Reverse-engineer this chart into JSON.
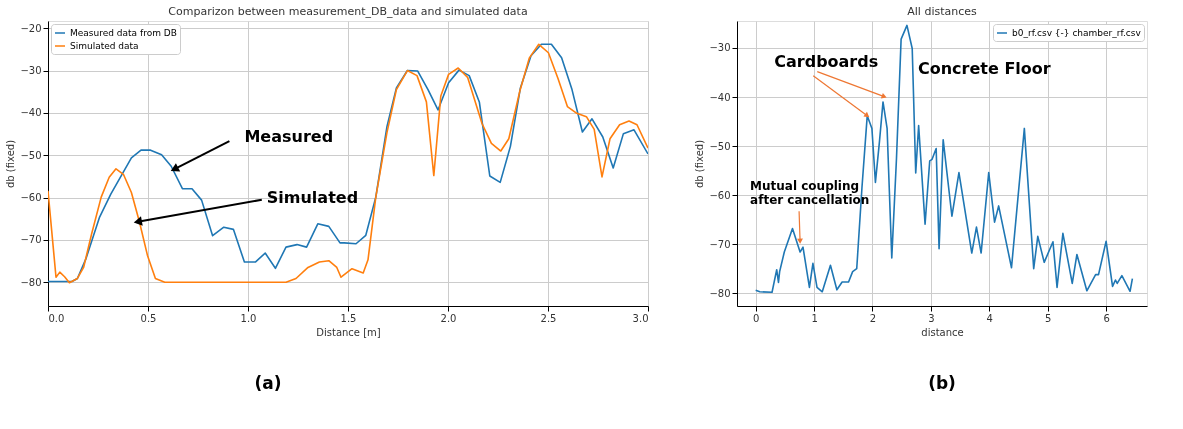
{
  "chart_data": [
    {
      "type": "line",
      "title": "Comparizon between measurement_DB_data and simulated data",
      "xlabel": "Distance [m]",
      "ylabel": "db (fixed)",
      "xlim": [
        0,
        3
      ],
      "ylim": [
        -85.6,
        -18.3
      ],
      "xticks": [
        {
          "value": 0,
          "label": "0.0"
        },
        0.5,
        {
          "value": 1,
          "label": "1.0"
        },
        1.5,
        {
          "value": 2,
          "label": "2.0"
        },
        2.5,
        {
          "value": 3,
          "label": "3.0"
        }
      ],
      "yticks": [
        -80,
        -70,
        -60,
        -50,
        -40,
        -30,
        -20
      ],
      "grid": true,
      "legend": "top left",
      "series": [
        {
          "name": "Measured data from DB",
          "color": "#1f77b4",
          "x": [
            0,
            0.12,
            0.147,
            0.19,
            0.258,
            0.314,
            0.417,
            0.465,
            0.513,
            0.568,
            0.616,
            0.672,
            0.72,
            0.768,
            0.823,
            0.879,
            0.927,
            0.982,
            1.038,
            1.086,
            1.137,
            1.19,
            1.245,
            1.293,
            1.349,
            1.404,
            1.46,
            1.481,
            1.54,
            1.589,
            1.639,
            1.695,
            1.742,
            1.797,
            1.848,
            1.9,
            1.95,
            2.003,
            2.055,
            2.106,
            2.157,
            2.209,
            2.261,
            2.312,
            2.362,
            2.415,
            2.467,
            2.517,
            2.568,
            2.62,
            2.672,
            2.72,
            2.774,
            2.826,
            2.877,
            2.93,
            3.0
          ],
          "values": [
            -79.8,
            -79.8,
            -79.1,
            -74.4,
            -64.6,
            -59.2,
            -50.6,
            -48.8,
            -48.8,
            -49.9,
            -52.6,
            -57.9,
            -57.9,
            -60.6,
            -69,
            -67,
            -67.5,
            -75.2,
            -75.2,
            -73.1,
            -76.7,
            -71.7,
            -71.1,
            -71.7,
            -66.2,
            -66.8,
            -70.7,
            -70.7,
            -70.9,
            -68.9,
            -59.9,
            -43.2,
            -34.1,
            -30,
            -30.1,
            -34.5,
            -39.3,
            -32.9,
            -29.9,
            -31.2,
            -37.5,
            -54.9,
            -56.4,
            -47.9,
            -34.1,
            -26.5,
            -23.8,
            -23.8,
            -27,
            -34.5,
            -44.5,
            -41.4,
            -45.7,
            -53,
            -44.9,
            -44,
            -49.7
          ]
        },
        {
          "name": "Simulated data",
          "color": "#ff7f0e",
          "x": [
            0,
            0.04,
            0.059,
            0.083,
            0.107,
            0.147,
            0.178,
            0.218,
            0.266,
            0.306,
            0.34,
            0.377,
            0.417,
            0.457,
            0.497,
            0.537,
            0.584,
            1.19,
            1.24,
            1.3,
            1.357,
            1.404,
            1.444,
            1.465,
            1.52,
            1.576,
            1.6,
            1.639,
            1.695,
            1.742,
            1.797,
            1.845,
            1.892,
            1.929,
            1.964,
            2.003,
            2.051,
            2.098,
            2.17,
            2.217,
            2.264,
            2.304,
            2.359,
            2.407,
            2.454,
            2.502,
            2.55,
            2.597,
            2.644,
            2.692,
            2.731,
            2.77,
            2.81,
            2.858,
            2.905,
            2.945,
            3.0
          ],
          "values": [
            -58.4,
            -78.8,
            -77.6,
            -78.7,
            -80.1,
            -79.1,
            -76.5,
            -68.6,
            -59.9,
            -55.2,
            -53.2,
            -54.5,
            -58.8,
            -65.7,
            -73.6,
            -79.1,
            -80,
            -80,
            -79.1,
            -76.5,
            -75.2,
            -74.9,
            -76.5,
            -78.8,
            -76.8,
            -77.8,
            -74.7,
            -59.9,
            -44.6,
            -34.5,
            -30,
            -31.2,
            -37.4,
            -54.8,
            -36,
            -30.9,
            -29.4,
            -31.6,
            -42.5,
            -47.2,
            -49,
            -46.1,
            -34.9,
            -27,
            -23.8,
            -25.8,
            -31.9,
            -38.5,
            -40.1,
            -40.9,
            -43.9,
            -55.1,
            -46.1,
            -42.8,
            -41.9,
            -42.8,
            -48.3
          ]
        }
      ],
      "annotations": [
        {
          "text": "Measured",
          "x": 0.632,
          "y": -53.3
        },
        {
          "text": "Simulated",
          "x": 0.449,
          "y": -65.7
        },
        "(a)"
      ]
    },
    {
      "type": "line",
      "title": "All distances",
      "xlabel": "distance",
      "ylabel": "db (fixed)",
      "xlim": [
        -0.32,
        6.7
      ],
      "ylim": [
        -82.6,
        -24.5
      ],
      "xticks": [
        0,
        1,
        2,
        3,
        4,
        5,
        6
      ],
      "yticks": [
        -80,
        -70,
        -60,
        -50,
        -40,
        -30
      ],
      "grid": true,
      "legend": "top right",
      "series": [
        {
          "name": "b0_rf.csv {-} chamber_rf.csv",
          "color": "#1f77b4",
          "x": [
            0,
            0.07,
            0.28,
            0.36,
            0.39,
            0.41,
            0.49,
            0.63,
            0.76,
            0.81,
            0.92,
            0.98,
            1.05,
            1.14,
            1.28,
            1.39,
            1.48,
            1.59,
            1.66,
            1.73,
            1.82,
            1.91,
            1.99,
            2.05,
            2.12,
            2.18,
            2.25,
            2.33,
            2.41,
            2.49,
            2.59,
            2.68,
            2.74,
            2.79,
            2.9,
            2.98,
            3.02,
            3.09,
            3.14,
            3.21,
            3.36,
            3.48,
            3.7,
            3.78,
            3.86,
            3.99,
            4.09,
            4.16,
            4.38,
            4.6,
            4.76,
            4.83,
            4.94,
            5.09,
            5.16,
            5.26,
            5.42,
            5.5,
            5.67,
            5.82,
            5.87,
            6.0,
            6.11,
            6.16,
            6.19,
            6.27,
            6.41,
            6.45
          ],
          "values": [
            -79.4,
            -79.7,
            -79.8,
            -75.2,
            -77.8,
            -75.6,
            -71.6,
            -66.8,
            -71.6,
            -70.6,
            -78.8,
            -73.9,
            -78.8,
            -79.7,
            -74.3,
            -79.3,
            -77.7,
            -77.7,
            -75.6,
            -75,
            -58.4,
            -43.8,
            -46.4,
            -57.4,
            -49,
            -41,
            -46.4,
            -72.8,
            -52.7,
            -28.2,
            -25.4,
            -30.1,
            -55.5,
            -45.8,
            -65.9,
            -53,
            -52.7,
            -50.5,
            -70.9,
            -48.7,
            -64.3,
            -55.4,
            -71.8,
            -66.5,
            -71.8,
            -55.4,
            -65.5,
            -62.2,
            -74.8,
            -46.4,
            -75,
            -68.4,
            -73.7,
            -69.5,
            -78.8,
            -67.8,
            -78,
            -72.1,
            -79.5,
            -76.2,
            -76.2,
            -69.4,
            -78.6,
            -77.3,
            -78,
            -76.4,
            -79.6,
            -77
          ]
        }
      ],
      "annotations": [
        {
          "text": "Cardboards",
          "x": 1.91,
          "y": -43.8
        },
        {
          "text": "Concrete Floor",
          "x": 2.59,
          "y": -25.4
        },
        {
          "text": "Mutual coupling after cancellation",
          "x": 0.76,
          "y": -69.4
        },
        "(b)"
      ]
    }
  ]
}
